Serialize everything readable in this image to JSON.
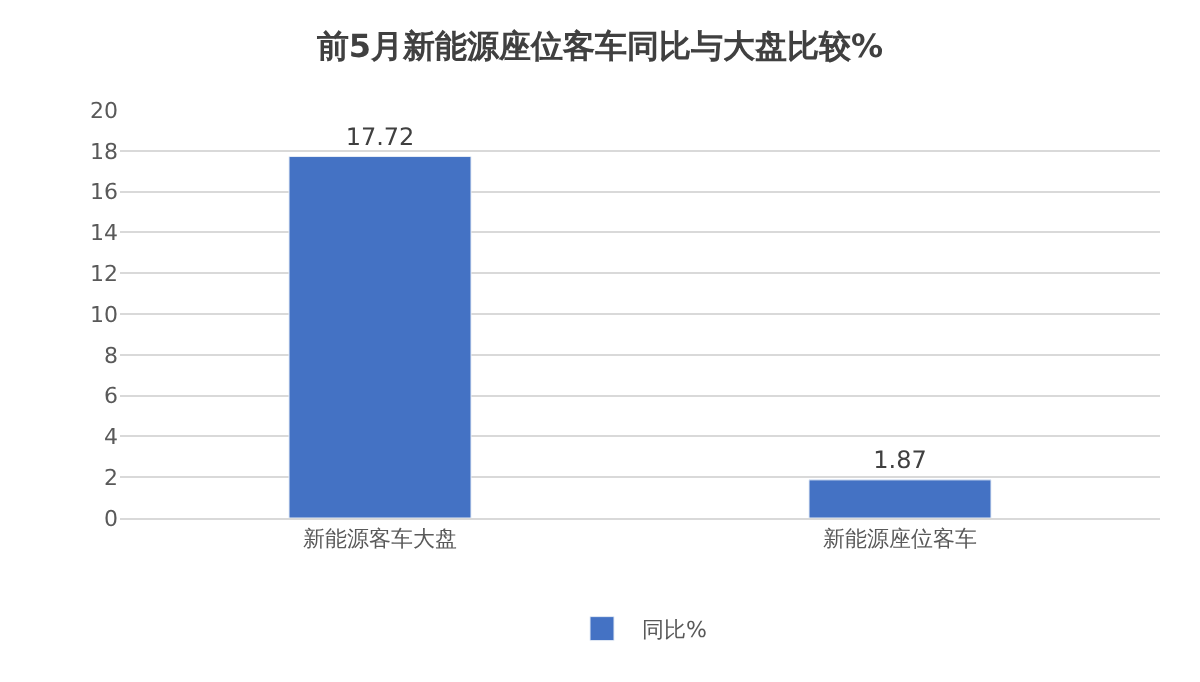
{
  "chart_data": {
    "type": "bar",
    "title": "前5月新能源座位客车同比与大盘比较%",
    "categories": [
      "新能源客车大盘",
      "新能源座位客车"
    ],
    "series": [
      {
        "name": "同比%",
        "color": "#4472c4",
        "values": [
          17.72,
          1.87
        ]
      }
    ],
    "ylim": [
      0,
      20
    ],
    "yticks": [
      0,
      2,
      4,
      6,
      8,
      10,
      12,
      14,
      16,
      18,
      20
    ],
    "grid": "y",
    "legend": "bottom",
    "data_labels": true
  }
}
